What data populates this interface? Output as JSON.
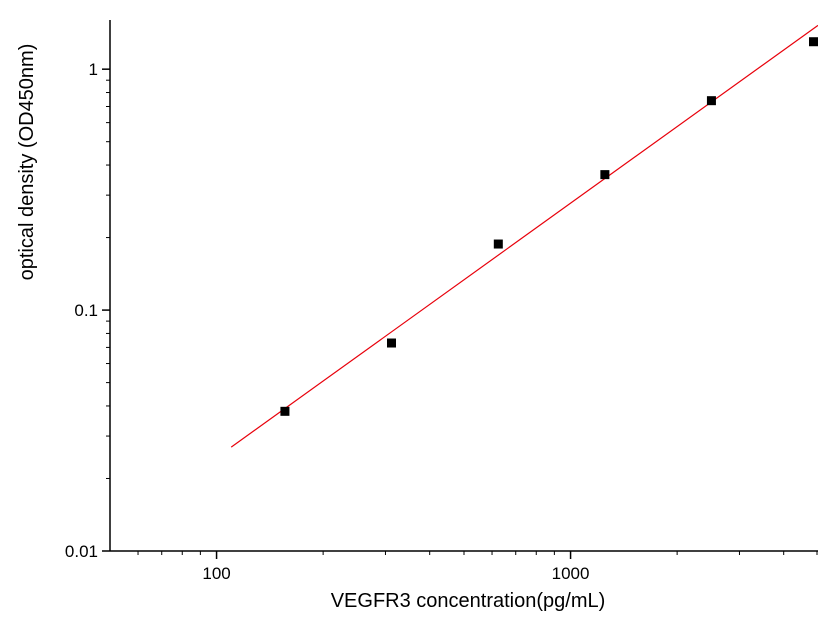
{
  "chart_data": {
    "type": "scatter",
    "title": "",
    "xlabel": "VEGFR3 concentration(pg/mL)",
    "ylabel": "optical density (OD450nm)",
    "x_scale": "log",
    "y_scale": "log",
    "xlim": [
      50,
      5000
    ],
    "ylim": [
      0.01,
      1.6
    ],
    "x_ticks": [
      {
        "value": 100,
        "label": "100"
      },
      {
        "value": 1000,
        "label": "1000"
      }
    ],
    "y_ticks": [
      {
        "value": 0.01,
        "label": "0.01"
      },
      {
        "value": 0.1,
        "label": "0.1"
      },
      {
        "value": 1,
        "label": "1"
      }
    ],
    "grid": false,
    "legend": "none",
    "series": [
      {
        "kind": "points",
        "marker": "square",
        "color": "#000000",
        "x": [
          156,
          312,
          625,
          1250,
          2500,
          5000
        ],
        "y": [
          0.038,
          0.073,
          0.188,
          0.365,
          0.74,
          1.3
        ]
      },
      {
        "kind": "fit-line",
        "color": "#e8000b",
        "x": [
          110,
          5000
        ],
        "y": [
          0.027,
          1.52
        ]
      }
    ]
  }
}
